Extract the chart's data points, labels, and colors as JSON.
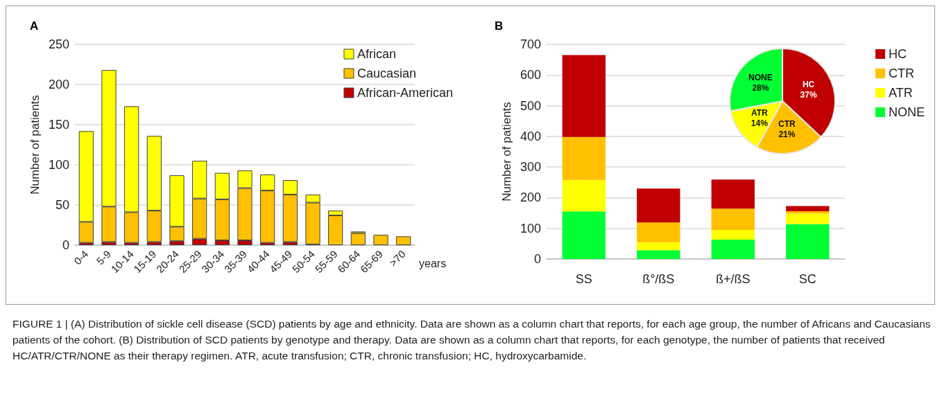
{
  "chart_data": [
    {
      "type": "bar",
      "title": "A",
      "categories": [
        "0-4",
        "5-9",
        "10-14",
        "15-19",
        "20-24",
        "25-29",
        "30-34",
        "35-39",
        "40-44",
        "45-49",
        "50-54",
        "55-59",
        "60-64",
        "65-69",
        ">70"
      ],
      "stacked": true,
      "ylabel": "Number of patients",
      "xlabel": "years",
      "ylim": [
        0,
        250
      ],
      "yticks": [
        0,
        50,
        100,
        150,
        200,
        250
      ],
      "grid": "y",
      "legend": "top right",
      "series": [
        {
          "name": "African-American",
          "color": "#c00000",
          "values": [
            3,
            4,
            3,
            4,
            5,
            8,
            6,
            6,
            3,
            4,
            1,
            0,
            0,
            0,
            0
          ]
        },
        {
          "name": "Caucasian",
          "color": "#ffc000",
          "values": [
            26,
            44,
            38,
            39,
            18,
            50,
            51,
            65,
            65,
            59,
            52,
            37,
            15,
            13,
            11
          ]
        },
        {
          "name": "African",
          "color": "#ffff00",
          "values": [
            113,
            170,
            132,
            93,
            64,
            47,
            33,
            22,
            20,
            18,
            10,
            6,
            2,
            0,
            0
          ]
        }
      ],
      "annotations": [
        "FIGURE 1 | (A) Distribution of sickle cell disease (SCD) patients by age and ethnicity. Data are shown as a column chart that reports, for each age group, the number of Africans and Caucasians patients of the cohort. (B) Distribution of SCD patients by genotype and therapy. Data are shown as a column chart that reports, for each genotype, the number of patients that received HC/ATR/CTR/NONE as their therapy regimen. ATR, acute transfusion; CTR, chronic transfusion; HC, hydroxycarbamide."
      ]
    },
    {
      "type": "bar",
      "title": "B",
      "categories": [
        "SS",
        "ß°/ßS",
        "ß+/ßS",
        "SC"
      ],
      "stacked": true,
      "ylabel": "Number of patients",
      "ylim": [
        0,
        700
      ],
      "yticks": [
        0,
        100,
        200,
        300,
        400,
        500,
        600,
        700
      ],
      "grid": "y",
      "legend": "top right",
      "series": [
        {
          "name": "NONE",
          "color": "#00ff33",
          "values": [
            155,
            29,
            63,
            114
          ]
        },
        {
          "name": "ATR",
          "color": "#ffff00",
          "values": [
            103,
            26,
            32,
            34
          ]
        },
        {
          "name": "CTR",
          "color": "#ffc000",
          "values": [
            140,
            64,
            69,
            8
          ]
        },
        {
          "name": "HC",
          "color": "#c00000",
          "values": [
            267,
            111,
            95,
            17
          ]
        }
      ]
    },
    {
      "type": "pie",
      "categories": [
        "HC",
        "CTR",
        "ATR",
        "NONE"
      ],
      "values": [
        37,
        21,
        14,
        28
      ],
      "value_labels": [
        "37%",
        "21%",
        "14%",
        "28%"
      ],
      "colors": [
        "#c00000",
        "#ffc000",
        "#ffff00",
        "#00ff33"
      ]
    }
  ]
}
